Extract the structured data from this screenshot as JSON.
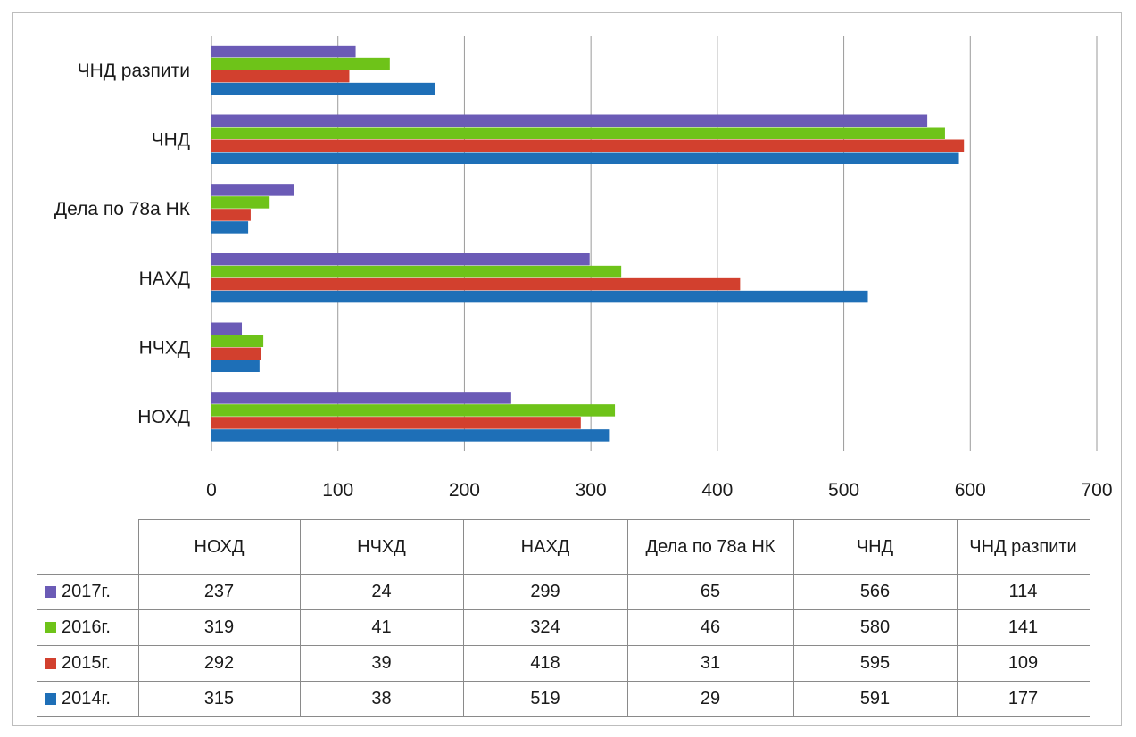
{
  "chart_data": {
    "type": "bar",
    "orientation": "horizontal",
    "categories": [
      "НОХД",
      "НЧХД",
      "НАХД",
      "Дела по 78а НК",
      "ЧНД",
      "ЧНД разпити"
    ],
    "category_labels_axis": [
      "НОХД",
      "НЧХД",
      "НАХД",
      "Дела по 78а НК",
      "ЧНД",
      "ЧНД разпити"
    ],
    "category_labels_table": [
      "НОХД",
      "НЧХД",
      "НАХД",
      "Дела по 78а НК",
      "ЧНД",
      "ЧНД разпити"
    ],
    "series": [
      {
        "name": "2017г.",
        "color": "#6B5BB6",
        "values": [
          237,
          24,
          299,
          65,
          566,
          114
        ]
      },
      {
        "name": "2016г.",
        "color": "#6EC319",
        "values": [
          319,
          41,
          324,
          46,
          580,
          141
        ]
      },
      {
        "name": "2015г.",
        "color": "#D2402E",
        "values": [
          292,
          39,
          418,
          31,
          595,
          109
        ]
      },
      {
        "name": "2014г.",
        "color": "#1E6FB7",
        "values": [
          315,
          38,
          519,
          29,
          591,
          177
        ]
      }
    ],
    "xlim": [
      0,
      700
    ],
    "x_ticks": [
      0,
      100,
      200,
      300,
      400,
      500,
      600,
      700
    ],
    "grid": true,
    "legend": "data-table-below",
    "title": "",
    "xlabel": "",
    "ylabel": ""
  }
}
